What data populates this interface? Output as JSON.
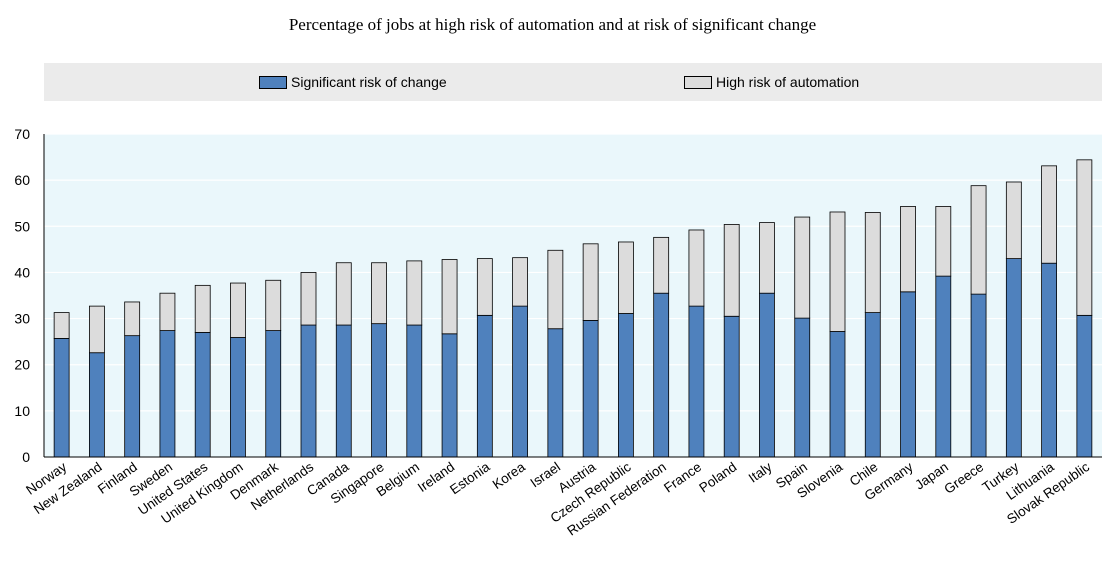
{
  "chart_data": {
    "type": "bar",
    "stacked": true,
    "title": "Percentage of jobs at high risk of automation and at risk of significant change",
    "legend_position": "top",
    "ylim": [
      0,
      70
    ],
    "yticks": [
      0,
      10,
      20,
      30,
      40,
      50,
      60,
      70
    ],
    "categories": [
      "Norway",
      "New Zealand",
      "Finland",
      "Sweden",
      "United States",
      "United Kingdom",
      "Denmark",
      "Netherlands",
      "Canada",
      "Singapore",
      "Belgium",
      "Ireland",
      "Estonia",
      "Korea",
      "Israel",
      "Austria",
      "Czech Republic",
      "Russian Federation",
      "France",
      "Poland",
      "Italy",
      "Spain",
      "Slovenia",
      "Chile",
      "Germany",
      "Japan",
      "Greece",
      "Turkey",
      "Lithuania",
      "Slovak Republic"
    ],
    "series": [
      {
        "name": "Significant risk of change",
        "color": "#4f81bd",
        "values": [
          25.7,
          22.6,
          26.3,
          27.4,
          27.0,
          25.9,
          27.4,
          28.6,
          28.6,
          28.9,
          28.6,
          26.7,
          30.7,
          32.7,
          27.8,
          29.6,
          31.1,
          35.5,
          32.7,
          30.5,
          35.5,
          30.1,
          27.2,
          31.3,
          35.8,
          39.2,
          35.3,
          43.0,
          42.0,
          30.7
        ]
      },
      {
        "name": "High risk of automation",
        "color": "#dcdcdc",
        "values": [
          5.6,
          10.1,
          7.3,
          8.1,
          10.2,
          11.8,
          10.9,
          11.4,
          13.5,
          13.2,
          13.9,
          16.1,
          12.3,
          10.5,
          17.0,
          16.6,
          15.5,
          12.1,
          16.5,
          19.9,
          15.3,
          21.9,
          25.9,
          21.7,
          18.5,
          15.1,
          23.5,
          16.6,
          21.1,
          33.7
        ]
      }
    ]
  }
}
